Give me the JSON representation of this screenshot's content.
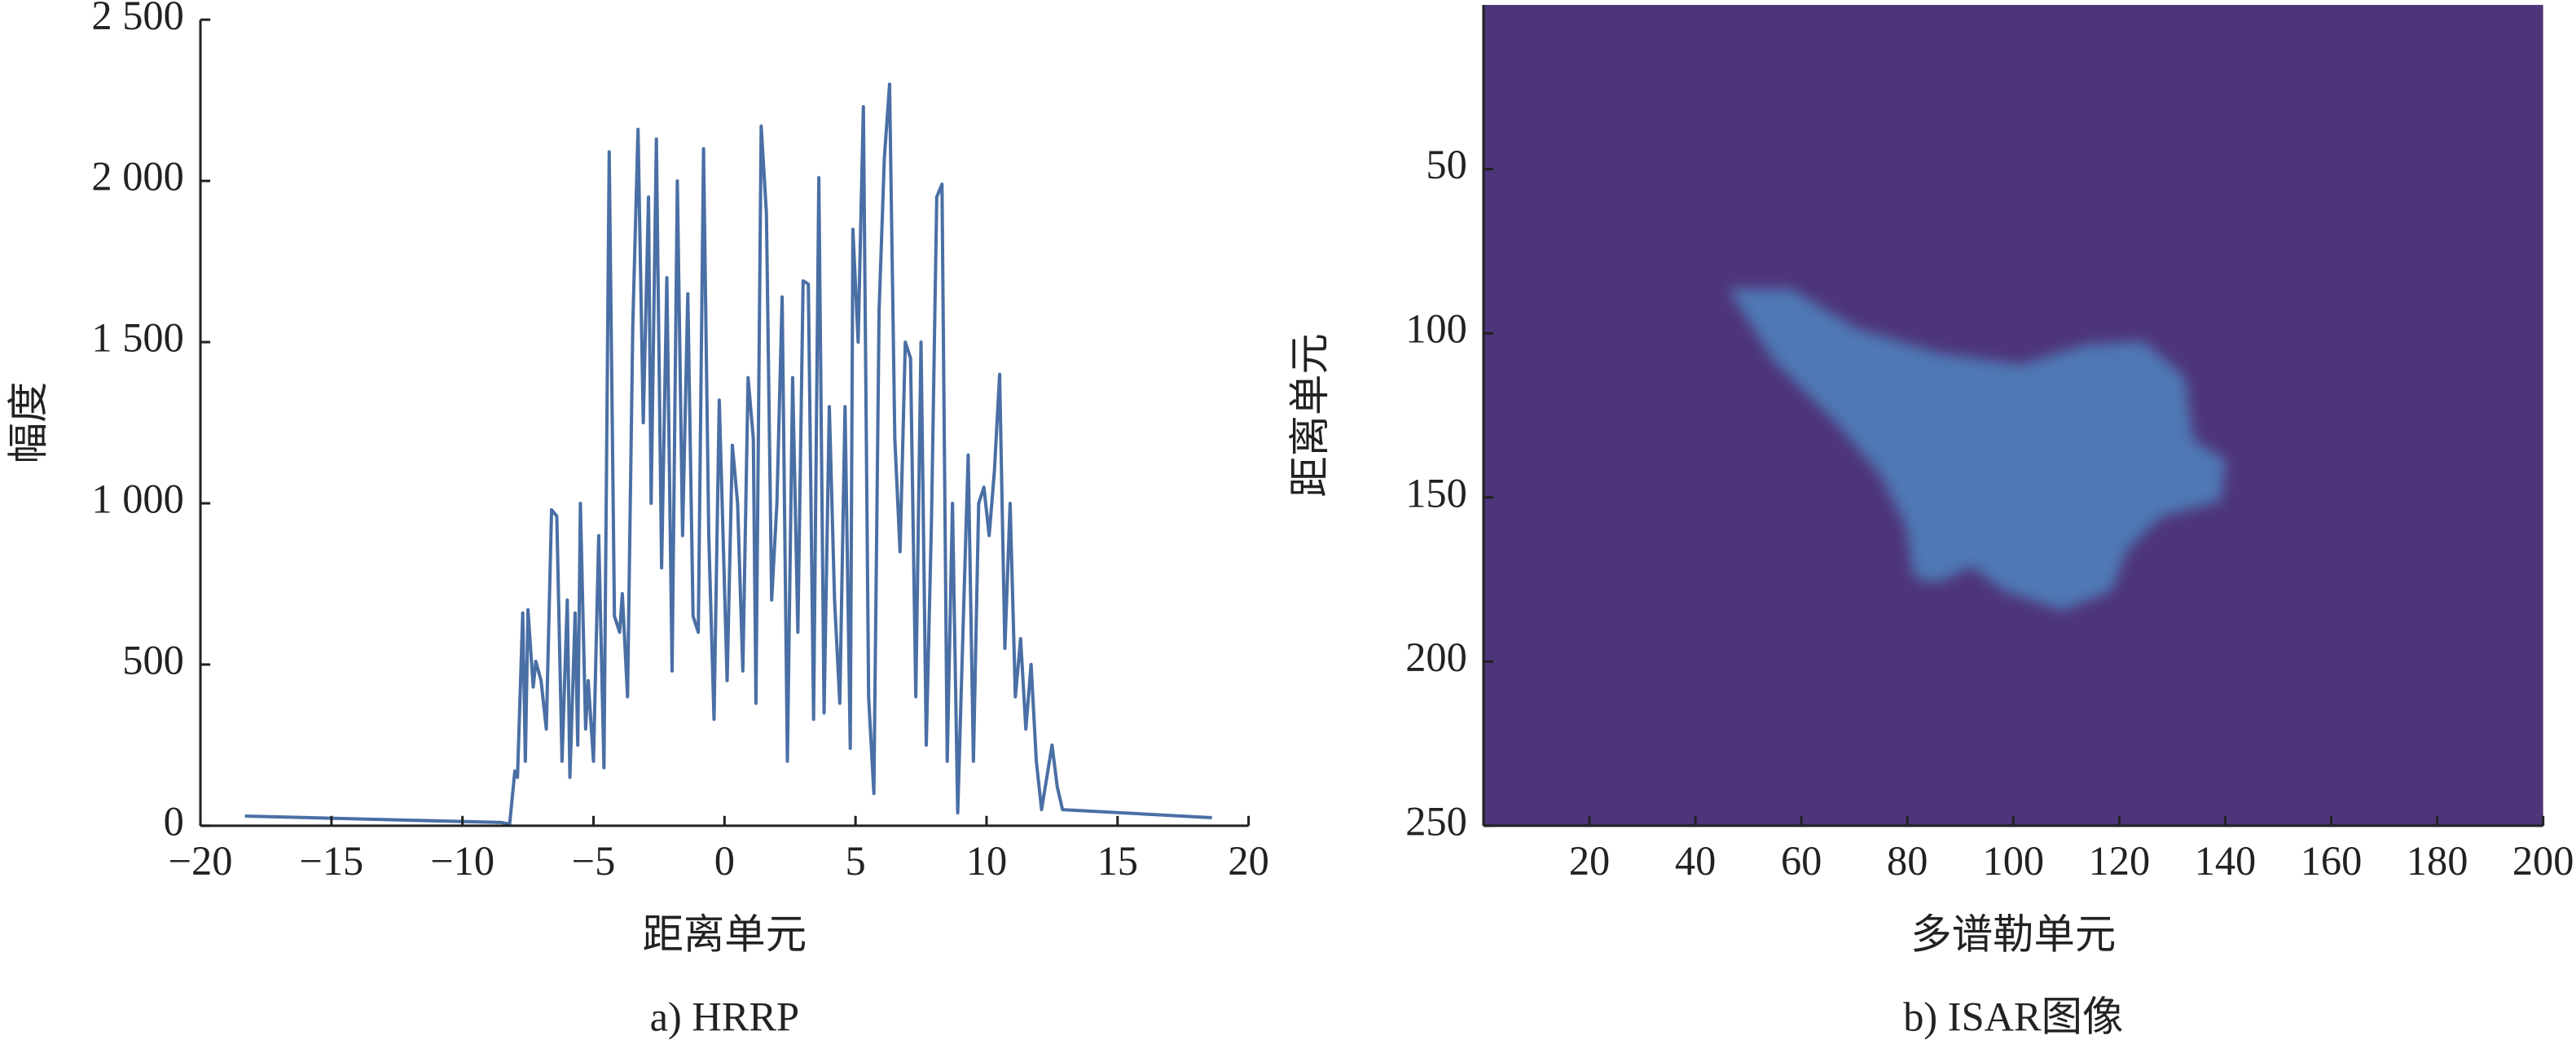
{
  "chart_data": [
    {
      "type": "line",
      "caption": "a) HRRP",
      "xlabel": "距离单元",
      "ylabel": "幅度",
      "xlim": [
        -20,
        20
      ],
      "ylim": [
        0,
        2500
      ],
      "xticks": [
        {
          "value": -20,
          "label": "−20"
        },
        {
          "value": -15,
          "label": "−15"
        },
        {
          "value": -10,
          "label": "−10"
        },
        {
          "value": -5,
          "label": "−5"
        },
        0,
        5,
        10,
        15,
        20
      ],
      "yticks": [
        0,
        500,
        {
          "value": 1000,
          "label": "1 000"
        },
        {
          "value": 1500,
          "label": "1 500"
        },
        {
          "value": 2000,
          "label": "2 000"
        },
        {
          "value": 2500,
          "label": "2 500"
        }
      ],
      "series": [
        {
          "color": "#4a6fa5",
          "x": [
            -18.3,
            -8.5,
            -8.2,
            -8.0,
            -7.9,
            -7.7,
            -7.6,
            -7.5,
            -7.3,
            -7.2,
            -7.0,
            -6.8,
            -6.6,
            -6.4,
            -6.2,
            -6.0,
            -5.9,
            -5.7,
            -5.6,
            -5.5,
            -5.3,
            -5.2,
            -5.0,
            -4.8,
            -4.6,
            -4.4,
            -4.2,
            -4.0,
            -3.9,
            -3.7,
            -3.5,
            -3.3,
            -3.1,
            -2.9,
            -2.8,
            -2.6,
            -2.4,
            -2.2,
            -2.0,
            -1.8,
            -1.6,
            -1.4,
            -1.2,
            -1.0,
            -0.8,
            -0.6,
            -0.4,
            -0.2,
            0.1,
            0.3,
            0.5,
            0.7,
            0.9,
            1.1,
            1.2,
            1.4,
            1.6,
            1.8,
            2.0,
            2.2,
            2.4,
            2.6,
            2.8,
            3.0,
            3.2,
            3.4,
            3.6,
            3.8,
            4.0,
            4.2,
            4.4,
            4.6,
            4.8,
            4.9,
            5.1,
            5.3,
            5.5,
            5.7,
            5.9,
            6.1,
            6.3,
            6.5,
            6.7,
            6.9,
            7.1,
            7.3,
            7.5,
            7.7,
            7.9,
            8.1,
            8.3,
            8.5,
            8.7,
            8.9,
            9.1,
            9.3,
            9.5,
            9.7,
            9.9,
            10.1,
            10.3,
            10.5,
            10.7,
            10.9,
            11.1,
            11.3,
            11.5,
            11.7,
            11.9,
            12.1,
            12.3,
            12.5,
            12.7,
            12.9,
            18.6
          ],
          "values": [
            30,
            10,
            5,
            170,
            150,
            660,
            200,
            670,
            430,
            510,
            450,
            300,
            980,
            960,
            200,
            700,
            150,
            660,
            250,
            1000,
            300,
            450,
            200,
            900,
            180,
            2090,
            650,
            600,
            720,
            400,
            1550,
            2160,
            1250,
            1950,
            1000,
            2130,
            800,
            1700,
            480,
            2000,
            900,
            1650,
            650,
            600,
            2100,
            900,
            330,
            1320,
            450,
            1180,
            1000,
            480,
            1390,
            1200,
            380,
            2170,
            1900,
            700,
            1000,
            1640,
            200,
            1390,
            600,
            1690,
            1680,
            330,
            2010,
            350,
            1300,
            700,
            380,
            1300,
            240,
            1850,
            1500,
            2230,
            400,
            100,
            1600,
            2070,
            2300,
            1200,
            850,
            1500,
            1450,
            400,
            1500,
            250,
            950,
            1950,
            1990,
            200,
            1000,
            40,
            600,
            1150,
            200,
            1000,
            1050,
            900,
            1100,
            1400,
            550,
            1000,
            400,
            580,
            300,
            500,
            200,
            50,
            150,
            250,
            120,
            50,
            25
          ]
        }
      ]
    },
    {
      "type": "image",
      "caption": "b) ISAR图像",
      "xlabel": "多谱勒单元",
      "ylabel": "距离单元",
      "xlim": [
        0,
        200
      ],
      "ylim": [
        250,
        0
      ],
      "xticks": [
        20,
        40,
        60,
        80,
        100,
        120,
        140,
        160,
        180,
        200
      ],
      "yticks": [
        50,
        100,
        150,
        200,
        250
      ],
      "background": "#4e357a",
      "color": "#4f8fc8"
    }
  ]
}
